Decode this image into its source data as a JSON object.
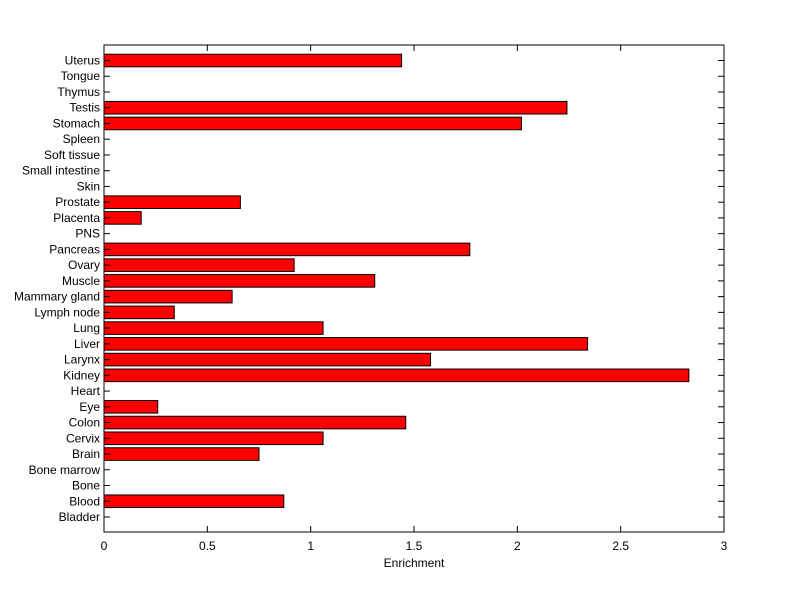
{
  "chart_data": {
    "type": "bar",
    "orientation": "horizontal",
    "title": "",
    "xlabel": "Enrichment",
    "ylabel": "",
    "xlim": [
      0,
      3
    ],
    "xticks": [
      0,
      0.5,
      1,
      1.5,
      2,
      2.5,
      3
    ],
    "xtick_labels": [
      "0",
      "0.5",
      "1",
      "1.5",
      "2",
      "2.5",
      "3"
    ],
    "grid": false,
    "legend": "none",
    "bar_color": "#ff0000",
    "categories": [
      "Bladder",
      "Blood",
      "Bone",
      "Bone marrow",
      "Brain",
      "Cervix",
      "Colon",
      "Eye",
      "Heart",
      "Kidney",
      "Larynx",
      "Liver",
      "Lung",
      "Lymph node",
      "Mammary gland",
      "Muscle",
      "Ovary",
      "Pancreas",
      "PNS",
      "Placenta",
      "Prostate",
      "Skin",
      "Small intestine",
      "Soft tissue",
      "Spleen",
      "Stomach",
      "Testis",
      "Thymus",
      "Tongue",
      "Uterus"
    ],
    "values": [
      0,
      0.87,
      0,
      0,
      0.75,
      1.06,
      1.46,
      0.26,
      0,
      2.83,
      1.58,
      2.34,
      1.06,
      0.34,
      0.62,
      1.31,
      0.92,
      1.77,
      0,
      0.18,
      0.66,
      0,
      0,
      0,
      0,
      2.02,
      2.24,
      0,
      0,
      1.44
    ]
  }
}
